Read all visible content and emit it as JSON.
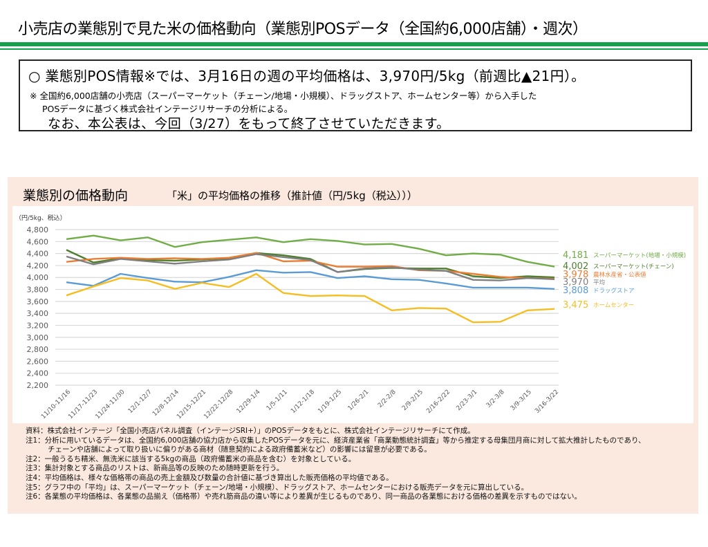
{
  "header": {
    "title": "小売店の業態別で見た米の価格動向（業態別POSデータ（全国約6,000店舗）・週次）"
  },
  "summary": {
    "main": "○ 業態別POS情報※では、3月16日の週の平均価格は、3,970円/5kg（前週比▲21円）。",
    "note_line1": "※  全国約6,000店舗の小売店（スーパーマーケット（チェーン/地場・小規模）、ドラッグストア、ホームセンター等）から入手した",
    "note_line2": "POSデータに基づく株式会社インテージリサーチの分析による。",
    "end_notice": "なお、本公表は、今回（3/27）をもって終了させていただきます。"
  },
  "panel": {
    "title": "業態別の価格動向",
    "subtitle": "「米」の平均価格の推移（推計値（円/5kg（税込）））"
  },
  "chart_data": {
    "type": "line",
    "title": "「米」の平均価格の推移（推計値（円/5kg（税込）））",
    "xlabel": "",
    "ylabel": "（円/5kg、税込）",
    "ylim": [
      2200,
      4800
    ],
    "y_ticks": [
      4800,
      4600,
      4400,
      4200,
      4000,
      3800,
      3600,
      3400,
      3200,
      3000,
      2800,
      2600,
      2400,
      2200
    ],
    "y_tick_labels": [
      "4,800",
      "4,600",
      "4,400",
      "4,200",
      "4,000",
      "3,800",
      "3,600",
      "3,400",
      "3,200",
      "3,000",
      "2,800",
      "2,600",
      "2,400",
      "2,200"
    ],
    "grid": true,
    "legend_position": "right (end labels)",
    "categories": [
      "11/10-11/16",
      "11/17-11/23",
      "11/24-11/30",
      "12/1-12/7",
      "12/8-12/14",
      "12/15-12/21",
      "12/22-12/28",
      "12/29-1/4",
      "1/5-1/11",
      "1/12-1/18",
      "1/19-1/25",
      "1/26-2/1",
      "2/2-2/8",
      "2/9-2/15",
      "2/16-2/22",
      "2/23-3/1",
      "3/2-3/8",
      "3/9-3/15",
      "3/16-3/22"
    ],
    "series": [
      {
        "name": "スーパーマーケット(地場・小規模)",
        "color": "#70ad47",
        "end_label": "4,181",
        "values": [
          4640,
          4700,
          4620,
          4670,
          4510,
          4590,
          4630,
          4670,
          4590,
          4640,
          4610,
          4550,
          4560,
          4480,
          4370,
          4400,
          4380,
          4260,
          4181
        ]
      },
      {
        "name": "スーパーマーケット(チェーン)",
        "color": "#4e7f2e",
        "end_label": "4,002",
        "values": [
          4460,
          4250,
          4320,
          4290,
          4280,
          4300,
          4320,
          4410,
          4370,
          4310,
          4090,
          4140,
          4160,
          4150,
          4150,
          4020,
          3990,
          4020,
          4002
        ]
      },
      {
        "name": "農林水産省・公表値",
        "color": "#ed7d31",
        "end_label": "3,978",
        "values": [
          4260,
          4310,
          4330,
          4310,
          4320,
          4310,
          4330,
          4410,
          4270,
          4280,
          4180,
          4180,
          4190,
          4120,
          4110,
          4060,
          4010,
          3990,
          3978
        ]
      },
      {
        "name": "平均",
        "color": "#7f7f7f",
        "end_label": "3,970",
        "values": [
          4350,
          4220,
          4310,
          4270,
          4230,
          4270,
          4300,
          4390,
          4340,
          4290,
          4090,
          4150,
          4170,
          4130,
          4110,
          3960,
          3950,
          3990,
          3970
        ]
      },
      {
        "name": "ドラッグストア",
        "color": "#5b9bd5",
        "end_label": "3,808",
        "values": [
          3920,
          3860,
          4060,
          3990,
          3930,
          3920,
          4010,
          4120,
          4080,
          4090,
          3990,
          4020,
          3970,
          3960,
          3900,
          3830,
          3830,
          3830,
          3808
        ]
      },
      {
        "name": "ホームセンター",
        "color": "#f5bd1f",
        "end_label": "3,475",
        "values": [
          3700,
          3850,
          3990,
          3950,
          3810,
          3910,
          3840,
          4060,
          3740,
          3690,
          3700,
          3690,
          3450,
          3490,
          3480,
          3250,
          3260,
          3450,
          3475
        ]
      }
    ]
  },
  "notes": [
    "資料：株式会社インテージ「全国小売店パネル調査（インテージSRI+）」のPOSデータをもとに、株式会社インテージリサーチにて作成。",
    "注1：分析に用いているデータは、全国約6,000店舗の協力店から収集したPOSデータを元に、経済産業省「商業動態統計調査」等から推定する母集団月商に対して拡大推計したものであり、",
    "チェーンや店舗によって取り扱いに偏りがある商材（随意契約による政府備蓄米など）の影響には留意が必要である。",
    "注2：一般うるち精米、無洗米に該当する5kgの商品（政府備蓄米の商品を含む）を対象としている。",
    "注3：集計対象とする商品のリストは、新商品等の反映のため随時更新を行う。",
    "注4：平均価格は、様々な価格帯の商品の売上金額及び数量の合計値に基づき算出した販売価格の平均値である。",
    "注5：グラフ中の「平均」は、スーパーマーケット（チェーン/地場・小規模）、ドラッグストア、ホームセンターにおける販売データを元に算出している。",
    "注6：各業態の平均価格は、各業態の品揃え（価格帯）や売れ筋商品の違い等により差異が生じるものであり、同一商品の各業態における価格の差異を示すものではない。"
  ]
}
